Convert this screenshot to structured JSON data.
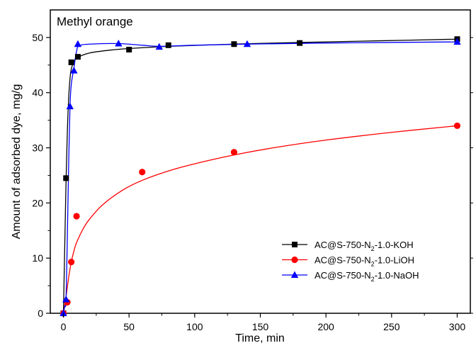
{
  "chart_data": {
    "type": "line",
    "title": "",
    "annotation": "Methyl orange",
    "xlabel": "Time, min",
    "ylabel": "Amount of adsorbed dye, mg/g",
    "xlim": [
      -10,
      310
    ],
    "ylim": [
      0,
      55
    ],
    "xticks": [
      0,
      50,
      100,
      150,
      200,
      250,
      300
    ],
    "yticks": [
      0,
      10,
      20,
      30,
      40,
      50
    ],
    "grid": false,
    "legend_position": "bottom-right",
    "series": [
      {
        "name": "AC@S-750-N2-1.0-KOH",
        "legend_parts": [
          "AC@S-750-N",
          "2",
          "-1.0-KOH"
        ],
        "color": "#000000",
        "marker": "square",
        "x": [
          0,
          2,
          6,
          11,
          50,
          80,
          130,
          180,
          300
        ],
        "y": [
          0,
          24.5,
          45.5,
          46.5,
          47.8,
          48.6,
          48.8,
          49.0,
          49.7
        ],
        "fit": [
          [
            0,
            0
          ],
          [
            1,
            12
          ],
          [
            2,
            24
          ],
          [
            3,
            33
          ],
          [
            4,
            39
          ],
          [
            5,
            42.5
          ],
          [
            6,
            44.3
          ],
          [
            8,
            45.6
          ],
          [
            11,
            46.4
          ],
          [
            20,
            47.2
          ],
          [
            35,
            47.7
          ],
          [
            50,
            48.0
          ],
          [
            80,
            48.4
          ],
          [
            130,
            48.8
          ],
          [
            180,
            49.1
          ],
          [
            240,
            49.4
          ],
          [
            300,
            49.7
          ]
        ]
      },
      {
        "name": "AC@S-750-N2-1.0-LiOH",
        "legend_parts": [
          "AC@S-750-N",
          "2",
          "-1.0-LiOH"
        ],
        "color": "#ff0000",
        "marker": "circle",
        "x": [
          0,
          3,
          6,
          10,
          60,
          130,
          300
        ],
        "y": [
          0,
          2.0,
          9.3,
          17.6,
          25.6,
          29.2,
          34.0
        ],
        "fit": [
          [
            0,
            0
          ],
          [
            2,
            3
          ],
          [
            4,
            6.5
          ],
          [
            6,
            9.3
          ],
          [
            8,
            11.3
          ],
          [
            10,
            12.8
          ],
          [
            15,
            15.3
          ],
          [
            20,
            17.1
          ],
          [
            30,
            19.7
          ],
          [
            45,
            22.3
          ],
          [
            60,
            24.1
          ],
          [
            80,
            25.8
          ],
          [
            100,
            27.1
          ],
          [
            130,
            28.7
          ],
          [
            160,
            30.0
          ],
          [
            200,
            31.4
          ],
          [
            250,
            32.8
          ],
          [
            300,
            34.0
          ]
        ]
      },
      {
        "name": "AC@S-750-N2-1.0-NaOH",
        "legend_parts": [
          "AC@S-750-N",
          "2",
          "-1.0-NaOH"
        ],
        "color": "#0000ff",
        "marker": "triangle",
        "x": [
          0,
          2,
          5,
          8,
          11,
          42,
          73,
          140,
          300
        ],
        "y": [
          0,
          2.5,
          37.5,
          44.0,
          48.8,
          48.9,
          48.3,
          48.8,
          49.2
        ],
        "fit": [
          [
            0,
            0
          ],
          [
            1,
            1.2
          ],
          [
            2,
            2.5
          ],
          [
            3,
            14
          ],
          [
            4,
            27
          ],
          [
            5,
            37.5
          ],
          [
            6,
            41.5
          ],
          [
            8,
            44.5
          ],
          [
            10,
            47.5
          ],
          [
            12,
            48.5
          ],
          [
            20,
            48.8
          ],
          [
            42,
            48.9
          ],
          [
            60,
            48.6
          ],
          [
            73,
            48.4
          ],
          [
            100,
            48.6
          ],
          [
            140,
            48.8
          ],
          [
            200,
            49.0
          ],
          [
            300,
            49.2
          ]
        ]
      }
    ]
  }
}
